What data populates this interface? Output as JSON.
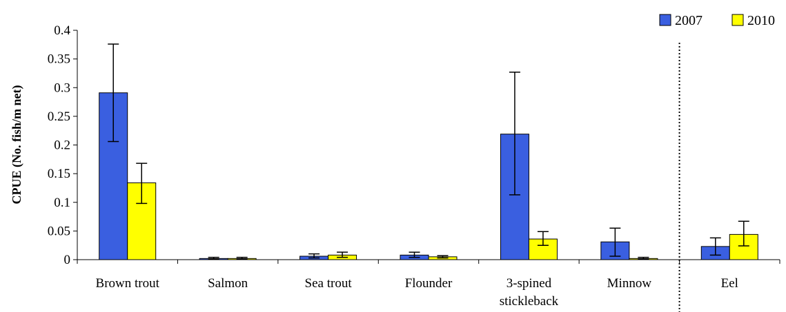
{
  "colors": {
    "series_2007": "#3a5fe0",
    "series_2010": "#ffff00",
    "outline": "#000000"
  },
  "chart_data": {
    "type": "bar",
    "title": "",
    "xlabel": "",
    "ylabel": "CPUE (No. fish/m net)",
    "ylim": [
      0,
      0.4
    ],
    "yticks": [
      "0",
      "0.05",
      "0.1",
      "0.15",
      "0.2",
      "0.25",
      "0.3",
      "0.35",
      "0.4"
    ],
    "grid": false,
    "legend_position": "top-right",
    "categories": [
      [
        "Brown trout"
      ],
      [
        "Salmon"
      ],
      [
        "Sea trout"
      ],
      [
        "Flounder"
      ],
      [
        "3-spined",
        "stickleback"
      ],
      [
        "Minnow"
      ],
      [
        "Eel"
      ]
    ],
    "separator_before_category": 6,
    "series": [
      {
        "name": "2007",
        "values": [
          0.291,
          0.002,
          0.006,
          0.008,
          0.219,
          0.031,
          0.023
        ],
        "err_low": [
          0.206,
          0.001,
          0.003,
          0.004,
          0.113,
          0.006,
          0.008
        ],
        "err_high": [
          0.376,
          0.004,
          0.01,
          0.013,
          0.327,
          0.055,
          0.038
        ]
      },
      {
        "name": "2010",
        "values": [
          0.134,
          0.002,
          0.008,
          0.005,
          0.036,
          0.002,
          0.044
        ],
        "err_low": [
          0.098,
          0.001,
          0.004,
          0.003,
          0.025,
          0.001,
          0.024
        ],
        "err_high": [
          0.168,
          0.004,
          0.013,
          0.007,
          0.049,
          0.004,
          0.067
        ]
      }
    ]
  }
}
